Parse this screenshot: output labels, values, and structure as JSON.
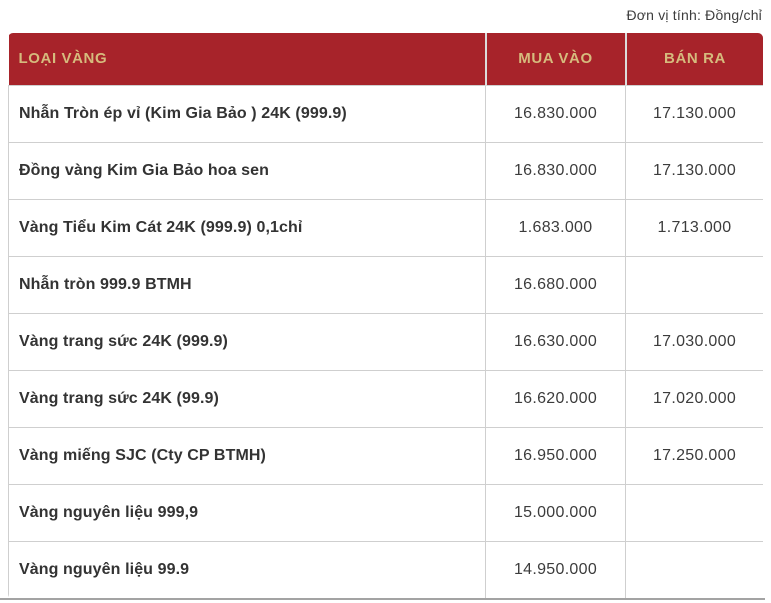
{
  "page": {
    "unit_note": "Đơn vị tính: Đồng/chỉ"
  },
  "table": {
    "columns": [
      "LOẠI VÀNG",
      "MUA VÀO",
      "BÁN RA"
    ],
    "rows": [
      {
        "name": "Nhẫn Tròn ép vỉ (Kim Gia Bảo ) 24K (999.9)",
        "buy": "16.830.000",
        "sell": "17.130.000"
      },
      {
        "name": "Đồng vàng Kim Gia Bảo hoa sen",
        "buy": "16.830.000",
        "sell": "17.130.000"
      },
      {
        "name": "Vàng Tiểu Kim Cát 24K (999.9) 0,1chỉ",
        "buy": "1.683.000",
        "sell": "1.713.000"
      },
      {
        "name": "Nhẫn tròn 999.9 BTMH",
        "buy": "16.680.000",
        "sell": ""
      },
      {
        "name": "Vàng trang sức 24K (999.9)",
        "buy": "16.630.000",
        "sell": "17.030.000"
      },
      {
        "name": "Vàng trang sức 24K (99.9)",
        "buy": "16.620.000",
        "sell": "17.020.000"
      },
      {
        "name": "Vàng miếng SJC (Cty CP BTMH)",
        "buy": "16.950.000",
        "sell": "17.250.000"
      },
      {
        "name": "Vàng nguyên liệu 999,9",
        "buy": "15.000.000",
        "sell": ""
      },
      {
        "name": "Vàng nguyên liệu 99.9",
        "buy": "14.950.000",
        "sell": ""
      }
    ],
    "colors": {
      "header_bg": "#A7232A",
      "header_text": "#D6BB7D",
      "row_text": "#333333",
      "border": "#cfcfcf",
      "divider": "#a3a3a3"
    }
  }
}
